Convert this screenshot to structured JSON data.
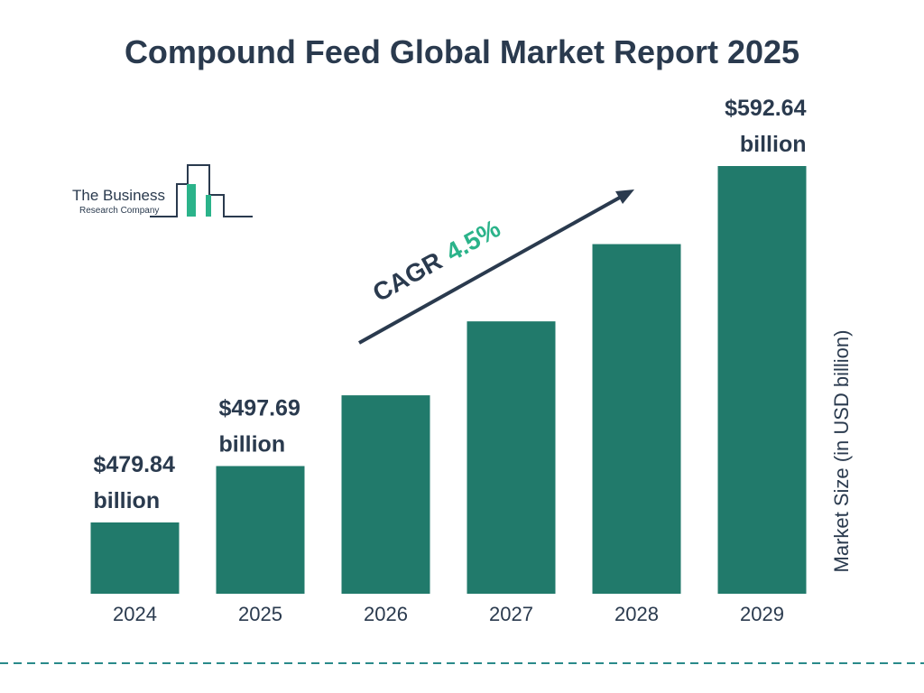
{
  "chart_data": {
    "type": "bar",
    "title": "Compound Feed Global Market Report 2025",
    "categories": [
      "2024",
      "2025",
      "2026",
      "2027",
      "2028",
      "2029"
    ],
    "values": [
      479.84,
      497.69,
      520.08,
      543.48,
      567.93,
      592.64
    ],
    "value_labels": [
      "$479.84 billion",
      "$497.69 billion",
      null,
      null,
      null,
      "$592.64 billion"
    ],
    "color": "#217a6b",
    "y_axis_label": "Market Size (in USD billion)",
    "annotation": {
      "label": "CAGR",
      "value": "4.5%"
    },
    "logo": {
      "line1": "The Business",
      "line2": "Research Company"
    }
  }
}
